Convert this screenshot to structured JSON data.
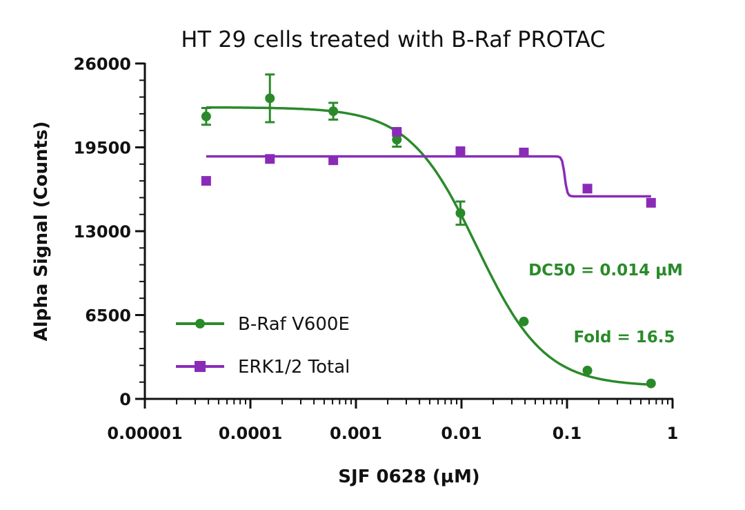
{
  "chart_data": {
    "type": "scatter",
    "title": "HT 29 cells treated with B-Raf PROTAC",
    "xlabel": "SJF 0628 (µM)",
    "ylabel": "Alpha Signal (Counts)",
    "x_scale": "log",
    "xlim": [
      1e-05,
      1
    ],
    "ylim": [
      0,
      26000
    ],
    "x_ticks": [
      1e-05,
      0.0001,
      0.001,
      0.01,
      0.1,
      1
    ],
    "x_tick_labels": [
      "0.00001",
      "0.0001",
      "0.001",
      "0.01",
      "0.1",
      "1"
    ],
    "y_ticks": [
      0,
      6500,
      13000,
      19500,
      26000
    ],
    "y_tick_labels": [
      "0",
      "6500",
      "13000",
      "19500",
      "26000"
    ],
    "grid": false,
    "legend_position": "bottom-left",
    "series": [
      {
        "name": "B-Raf V600E",
        "color": "#2a8a2a",
        "marker": "circle",
        "x": [
          3.81e-05,
          0.000153,
          0.00061,
          0.00244,
          0.00977,
          0.039,
          0.156,
          0.625
        ],
        "y": [
          21900,
          23300,
          22300,
          20100,
          14400,
          6000,
          2200,
          1200
        ],
        "error": [
          650,
          1850,
          650,
          550,
          900,
          0,
          0,
          0
        ],
        "fit": {
          "model": "4PL",
          "top": 22600,
          "bottom": 980,
          "ec50": 0.014,
          "hill": 1.35
        }
      },
      {
        "name": "ERK1/2 Total",
        "color": "#8a2bb8",
        "marker": "square",
        "x": [
          3.81e-05,
          0.000153,
          0.00061,
          0.00244,
          0.00977,
          0.039,
          0.156,
          0.625
        ],
        "y": [
          16900,
          18600,
          18500,
          20700,
          19200,
          19100,
          16300,
          15200
        ],
        "error": [
          0,
          0,
          0,
          0,
          0,
          0,
          0,
          0
        ],
        "fit": {
          "model": "step",
          "top": 18800,
          "bottom": 15700,
          "step_x": 0.095
        }
      }
    ],
    "annotations": [
      {
        "text": "DC50 = 0.014 µM",
        "color": "#2a8a2a"
      },
      {
        "text": "Fold =  16.5",
        "color": "#2a8a2a"
      }
    ]
  }
}
